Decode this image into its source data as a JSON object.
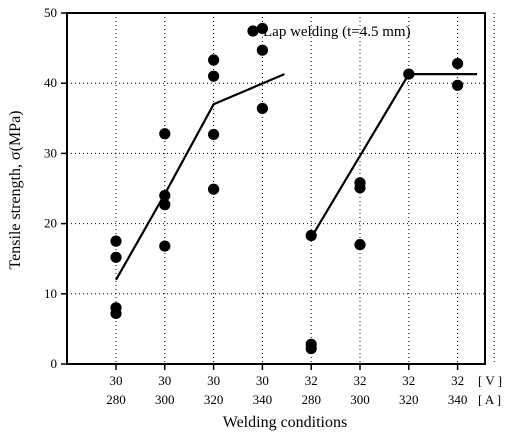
{
  "chart_data": {
    "type": "scatter",
    "title": "",
    "xlabel": "Welding conditions",
    "ylabel": "Tensile strength, σ(MPa)",
    "ylim": [
      0,
      50
    ],
    "yticks": [
      0,
      10,
      20,
      30,
      40,
      50
    ],
    "grid": true,
    "categories": [
      {
        "voltage": "30",
        "current": "280"
      },
      {
        "voltage": "30",
        "current": "300"
      },
      {
        "voltage": "30",
        "current": "320"
      },
      {
        "voltage": "30",
        "current": "340"
      },
      {
        "voltage": "32",
        "current": "280"
      },
      {
        "voltage": "32",
        "current": "300"
      },
      {
        "voltage": "32",
        "current": "320"
      },
      {
        "voltage": "32",
        "current": "340"
      }
    ],
    "units": {
      "voltage": "[ V ]",
      "current": "[ A ]"
    },
    "annotation": "Lap welding (t=4.5 mm)",
    "points": [
      {
        "cat": 0,
        "y": 17.5
      },
      {
        "cat": 0,
        "y": 15.2
      },
      {
        "cat": 0,
        "y": 8.0
      },
      {
        "cat": 0,
        "y": 7.2
      },
      {
        "cat": 1,
        "y": 32.8
      },
      {
        "cat": 1,
        "y": 24.0
      },
      {
        "cat": 1,
        "y": 22.7
      },
      {
        "cat": 1,
        "y": 16.8
      },
      {
        "cat": 2,
        "y": 43.3
      },
      {
        "cat": 2,
        "y": 41.0
      },
      {
        "cat": 2,
        "y": 32.7
      },
      {
        "cat": 2,
        "y": 24.9
      },
      {
        "cat": 3,
        "y": 47.8
      },
      {
        "cat": 3,
        "y": 44.7
      },
      {
        "cat": 3,
        "y": 36.4
      },
      {
        "cat": 4,
        "y": 18.3
      },
      {
        "cat": 4,
        "y": 2.8
      },
      {
        "cat": 4,
        "y": 2.2
      },
      {
        "cat": 5,
        "y": 25.8
      },
      {
        "cat": 5,
        "y": 25.1
      },
      {
        "cat": 5,
        "y": 17.0
      },
      {
        "cat": 6,
        "y": 41.3
      },
      {
        "cat": 7,
        "y": 42.8
      },
      {
        "cat": 7,
        "y": 39.7
      }
    ],
    "fit_lines": [
      [
        {
          "cat": 0,
          "y": 12.0
        },
        {
          "cat": 1,
          "y": 24.2
        },
        {
          "cat": 2,
          "y": 37.0
        },
        {
          "cat": 3.45,
          "y": 41.3
        }
      ],
      [
        {
          "cat": 4,
          "y": 18.0
        },
        {
          "cat": 6,
          "y": 41.3
        },
        {
          "cat": 7.4,
          "y": 41.3
        }
      ]
    ]
  }
}
